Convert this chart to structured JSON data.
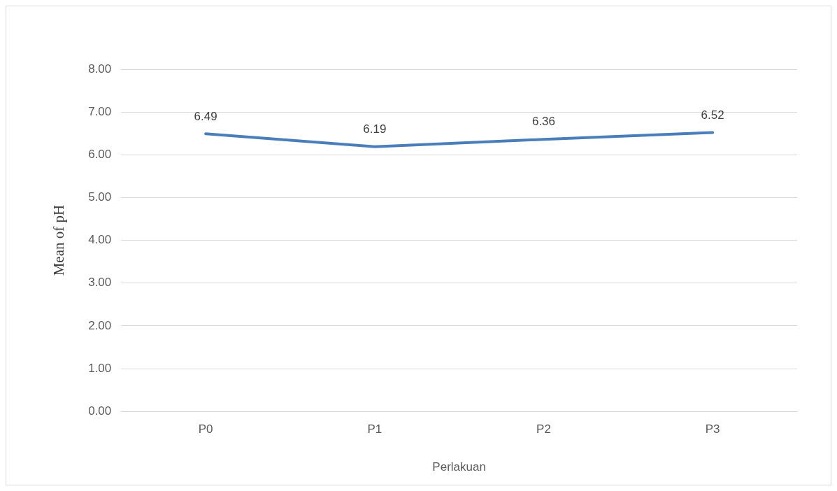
{
  "chart_data": {
    "type": "line",
    "ylabel": "Mean of pH",
    "xlabel": "Perlakuan",
    "categories": [
      "P0",
      "P1",
      "P2",
      "P3"
    ],
    "series": [
      {
        "color": "#4a7ebb",
        "values": [
          6.49,
          6.19,
          6.36,
          6.52
        ]
      }
    ],
    "ylim": [
      0,
      8
    ],
    "yticks": [
      {
        "value": 0,
        "label": "0.00"
      },
      {
        "value": 1,
        "label": "1.00"
      },
      {
        "value": 2,
        "label": "2.00"
      },
      {
        "value": 3,
        "label": "3.00"
      },
      {
        "value": 4,
        "label": "4.00"
      },
      {
        "value": 5,
        "label": "5.00"
      },
      {
        "value": 6,
        "label": "6.00"
      },
      {
        "value": 7,
        "label": "7.00"
      },
      {
        "value": 8,
        "label": "8.00"
      }
    ],
    "grid": "y",
    "legend": false,
    "marker": "none",
    "line_style": "solid",
    "data_labels": true
  }
}
